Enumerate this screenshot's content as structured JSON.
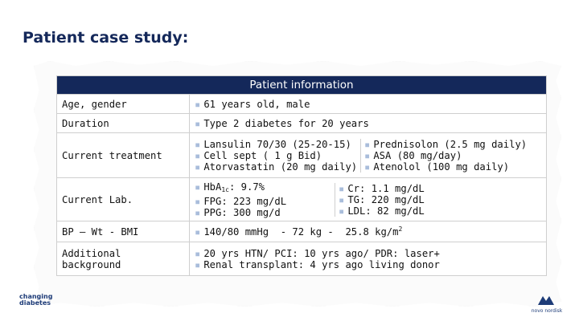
{
  "title": "Patient case study:",
  "table": {
    "header": "Patient information",
    "bullet": "▪",
    "rows": {
      "age": {
        "label": "Age, gender",
        "value": "61 years old, male"
      },
      "duration": {
        "label": "Duration",
        "value": "Type 2 diabetes for 20 years"
      },
      "treatment": {
        "label": "Current treatment",
        "col1": [
          "Lansulin 70/30 (25-20-15)",
          "Cell sept ( 1 g Bid)",
          "Atorvastatin (20 mg daily)"
        ],
        "col2": [
          "Prednisolon (2.5 mg daily)",
          "ASA (80 mg/day)",
          "Atenolol (100 mg daily)"
        ]
      },
      "lab": {
        "label": "Current Lab.",
        "hba1c_prefix": "HbA",
        "hba1c_sub": "1c",
        "hba1c_value": ": 9.7%",
        "fpg": "FPG: 223 mg/dL",
        "ppg": "PPG: 300 mg/d",
        "col2": [
          "Cr: 1.1 mg/dL",
          "TG: 220 mg/dL",
          "LDL: 82 mg/dL"
        ]
      },
      "bp": {
        "label": "BP – Wt - BMI",
        "value": "140/80 mmHg  - 72 kg -  25.8 kg/m",
        "sup": "2"
      },
      "background": {
        "label": "Additional background",
        "lines": [
          "20 yrs HTN/ PCI: 10 yrs ago/ PDR: laser+",
          "Renal transplant: 4 yrs ago living donor"
        ]
      }
    }
  },
  "logos": {
    "left_line1": "changing",
    "left_line2": "diabetes",
    "right_text": "novo nordisk"
  }
}
